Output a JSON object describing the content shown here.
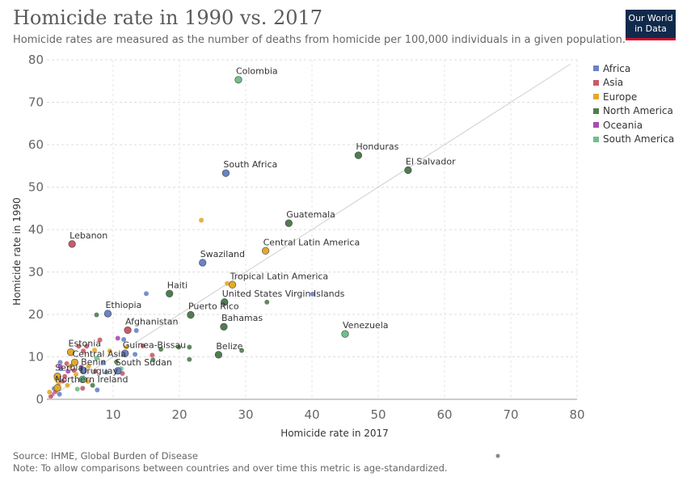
{
  "header": {
    "title": "Homicide rate in 1990 vs. 2017",
    "subtitle": "Homicide rates are measured as the number of deaths from homicide per 100,000 individuals in a given population.",
    "logo_line1": "Our World",
    "logo_line2": "in Data"
  },
  "footer": {
    "source": "Source: IHME, Global Burden of Disease",
    "note": "Note: To allow comparisons between countries and over time this metric is age-standardized."
  },
  "colors": {
    "Africa": "#6883c8",
    "Asia": "#c95a6b",
    "Europe": "#e3a92c",
    "North America": "#4f7d4f",
    "Oceania": "#a64db3",
    "South America": "#6fc08a"
  },
  "chart_data": {
    "type": "scatter",
    "xlabel": "Homicide rate in 2017",
    "ylabel": "Homicide rate in 1990",
    "xlim": [
      0,
      80
    ],
    "ylim": [
      0,
      80
    ],
    "xticks": [
      10,
      20,
      30,
      40,
      50,
      60,
      70,
      80
    ],
    "yticks": [
      0,
      10,
      20,
      30,
      40,
      50,
      60,
      70,
      80
    ],
    "reference_line": "y = x",
    "grid": "horizontal dashed",
    "legend_position": "right",
    "legend": [
      "Africa",
      "Asia",
      "Europe",
      "North America",
      "Oceania",
      "South America"
    ],
    "labeled_points": [
      {
        "name": "Colombia",
        "x": 28.9,
        "y": 75.3,
        "group": "South America"
      },
      {
        "name": "Honduras",
        "x": 47.0,
        "y": 57.5,
        "group": "North America"
      },
      {
        "name": "El Salvador",
        "x": 54.5,
        "y": 54.0,
        "group": "North America"
      },
      {
        "name": "South Africa",
        "x": 27.0,
        "y": 53.3,
        "group": "Africa"
      },
      {
        "name": "Guatemala",
        "x": 36.5,
        "y": 41.5,
        "group": "North America"
      },
      {
        "name": "Lebanon",
        "x": 3.8,
        "y": 36.6,
        "group": "Asia"
      },
      {
        "name": "Central Latin America",
        "x": 33.0,
        "y": 35.0,
        "group": "Europe"
      },
      {
        "name": "Swaziland",
        "x": 23.5,
        "y": 32.2,
        "group": "Africa"
      },
      {
        "name": "Tropical Latin America",
        "x": 28.0,
        "y": 27.0,
        "group": "Europe"
      },
      {
        "name": "Haiti",
        "x": 18.5,
        "y": 24.9,
        "group": "North America"
      },
      {
        "name": "United States Virgin Islands",
        "x": 26.8,
        "y": 22.9,
        "group": "North America"
      },
      {
        "name": "Ethiopia",
        "x": 9.2,
        "y": 20.2,
        "group": "Africa"
      },
      {
        "name": "Puerto Rico",
        "x": 21.7,
        "y": 19.9,
        "group": "North America"
      },
      {
        "name": "Bahamas",
        "x": 26.7,
        "y": 17.1,
        "group": "North America"
      },
      {
        "name": "Afghanistan",
        "x": 12.2,
        "y": 16.3,
        "group": "Asia"
      },
      {
        "name": "Venezuela",
        "x": 45.0,
        "y": 15.4,
        "group": "South America"
      },
      {
        "name": "Estonia",
        "x": 3.6,
        "y": 11.1,
        "group": "Europe"
      },
      {
        "name": "Guinea-Bissau",
        "x": 11.8,
        "y": 10.8,
        "group": "Africa"
      },
      {
        "name": "Belize",
        "x": 25.9,
        "y": 10.5,
        "group": "North America"
      },
      {
        "name": "Central Asia",
        "x": 4.2,
        "y": 8.7,
        "group": "Europe"
      },
      {
        "name": "Benin",
        "x": 5.5,
        "y": 6.8,
        "group": "Africa"
      },
      {
        "name": "South Sudan",
        "x": 10.7,
        "y": 6.7,
        "group": "Africa"
      },
      {
        "name": "Serbia",
        "x": 1.6,
        "y": 5.4,
        "group": "Europe"
      },
      {
        "name": "Uruguay",
        "x": 5.4,
        "y": 4.7,
        "group": "South America"
      },
      {
        "name": "Northern Ireland",
        "x": 1.6,
        "y": 2.7,
        "group": "Europe"
      }
    ],
    "unlabeled_points": [
      {
        "x": 23.3,
        "y": 42.2,
        "group": "Europe"
      },
      {
        "x": 15.0,
        "y": 24.9,
        "group": "Africa"
      },
      {
        "x": 27.2,
        "y": 27.3,
        "group": "Europe"
      },
      {
        "x": 40.1,
        "y": 24.8,
        "group": "Africa"
      },
      {
        "x": 33.2,
        "y": 22.9,
        "group": "North America"
      },
      {
        "x": 7.5,
        "y": 19.9,
        "group": "North America"
      },
      {
        "x": 13.5,
        "y": 16.2,
        "group": "Africa"
      },
      {
        "x": 29.4,
        "y": 11.5,
        "group": "North America"
      },
      {
        "x": 19.9,
        "y": 12.3,
        "group": "North America"
      },
      {
        "x": 21.5,
        "y": 12.3,
        "group": "North America"
      },
      {
        "x": 21.5,
        "y": 9.4,
        "group": "North America"
      },
      {
        "x": 17.2,
        "y": 11.8,
        "group": "North America"
      },
      {
        "x": 15.9,
        "y": 10.4,
        "group": "Asia"
      },
      {
        "x": 16.0,
        "y": 9.3,
        "group": "North America"
      },
      {
        "x": 13.3,
        "y": 10.6,
        "group": "Africa"
      },
      {
        "x": 14.5,
        "y": 12.6,
        "group": "Asia"
      },
      {
        "x": 12.0,
        "y": 12.3,
        "group": "Europe"
      },
      {
        "x": 11.6,
        "y": 14.1,
        "group": "Africa"
      },
      {
        "x": 10.7,
        "y": 14.4,
        "group": "Oceania"
      },
      {
        "x": 8.0,
        "y": 14.0,
        "group": "Asia"
      },
      {
        "x": 9.5,
        "y": 11.4,
        "group": "Europe"
      },
      {
        "x": 7.2,
        "y": 11.6,
        "group": "Europe"
      },
      {
        "x": 6.0,
        "y": 12.5,
        "group": "Asia"
      },
      {
        "x": 5.5,
        "y": 11.4,
        "group": "Asia"
      },
      {
        "x": 4.8,
        "y": 12.5,
        "group": "Asia"
      },
      {
        "x": 10.5,
        "y": 8.8,
        "group": "North America"
      },
      {
        "x": 11.2,
        "y": 7.2,
        "group": "South America"
      },
      {
        "x": 11.4,
        "y": 6.1,
        "group": "Asia"
      },
      {
        "x": 9.0,
        "y": 6.4,
        "group": "Africa"
      },
      {
        "x": 8.5,
        "y": 8.6,
        "group": "Africa"
      },
      {
        "x": 7.3,
        "y": 6.6,
        "group": "Asia"
      },
      {
        "x": 7.5,
        "y": 9.7,
        "group": "South America"
      },
      {
        "x": 6.9,
        "y": 3.3,
        "group": "North America"
      },
      {
        "x": 7.6,
        "y": 2.2,
        "group": "Africa"
      },
      {
        "x": 5.4,
        "y": 2.6,
        "group": "Asia"
      },
      {
        "x": 4.6,
        "y": 2.4,
        "group": "South America"
      },
      {
        "x": 2.1,
        "y": 7.2,
        "group": "Africa"
      },
      {
        "x": 2.0,
        "y": 8.7,
        "group": "Africa"
      },
      {
        "x": 2.0,
        "y": 7.8,
        "group": "Oceania"
      },
      {
        "x": 3.0,
        "y": 8.4,
        "group": "Asia"
      },
      {
        "x": 3.2,
        "y": 6.6,
        "group": "Oceania"
      },
      {
        "x": 4.4,
        "y": 5.9,
        "group": "Europe"
      },
      {
        "x": 1.4,
        "y": 4.8,
        "group": "Europe"
      },
      {
        "x": 1.8,
        "y": 3.8,
        "group": "Europe"
      },
      {
        "x": 1.1,
        "y": 2.5,
        "group": "Africa"
      },
      {
        "x": 0.8,
        "y": 1.2,
        "group": "Oceania"
      },
      {
        "x": 0.6,
        "y": 0.7,
        "group": "Asia"
      },
      {
        "x": 0.4,
        "y": 1.7,
        "group": "Europe"
      },
      {
        "x": 1.3,
        "y": 1.8,
        "group": "Asia"
      },
      {
        "x": 1.9,
        "y": 1.2,
        "group": "Africa"
      },
      {
        "x": 2.4,
        "y": 4.3,
        "group": "Asia"
      },
      {
        "x": 2.7,
        "y": 5.4,
        "group": "Asia"
      },
      {
        "x": 3.5,
        "y": 7.8,
        "group": "Europe"
      },
      {
        "x": 5.2,
        "y": 7.5,
        "group": "Oceania"
      },
      {
        "x": 4.1,
        "y": 6.8,
        "group": "Asia"
      },
      {
        "x": 6.3,
        "y": 7.8,
        "group": "Europe"
      },
      {
        "x": 3.1,
        "y": 3.3,
        "group": "Europe"
      },
      {
        "x": 6.2,
        "y": 4.2,
        "group": "Europe"
      }
    ]
  }
}
